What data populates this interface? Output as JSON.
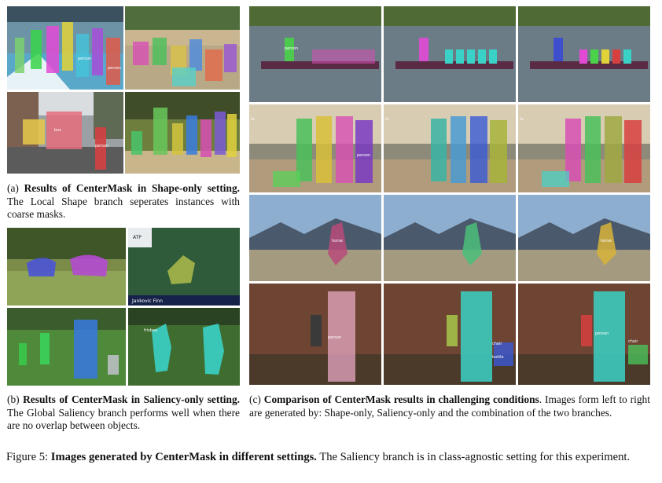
{
  "panel_a": {
    "caption_prefix": "(a) ",
    "caption_bold": "Results of CenterMask in Shape-only setting.",
    "caption_rest": " The Local Shape branch seperates instances with coarse masks."
  },
  "panel_b": {
    "caption_prefix": "(b) ",
    "caption_bold": "Results of CenterMask in Saliency-only setting.",
    "caption_rest": " The Global Saliency branch performs well when there are no overlap between objects.",
    "tennis_banner": "Jankovic Finn",
    "logo_text": "ATP"
  },
  "panel_c": {
    "caption_prefix": "(c) ",
    "caption_bold": "Comparison of CenterMask results in challenging conditions",
    "caption_rest": ". Images form left to right are generated by: Shape-only, Saliency-only and the combination of the two branches."
  },
  "figure": {
    "prefix": "Figure 5: ",
    "bold": "Images generated by CenterMask in different settings.",
    "rest": " The Saliency branch is in class-agnostic setting for this experiment."
  },
  "mask_labels": {
    "person": "person",
    "bus": "bus",
    "chair": "chair",
    "bottle": "bottle",
    "frisbee": "frisbee",
    "horse": "horse",
    "tv": "tv",
    "cow": "cow",
    "boat": "boat"
  }
}
